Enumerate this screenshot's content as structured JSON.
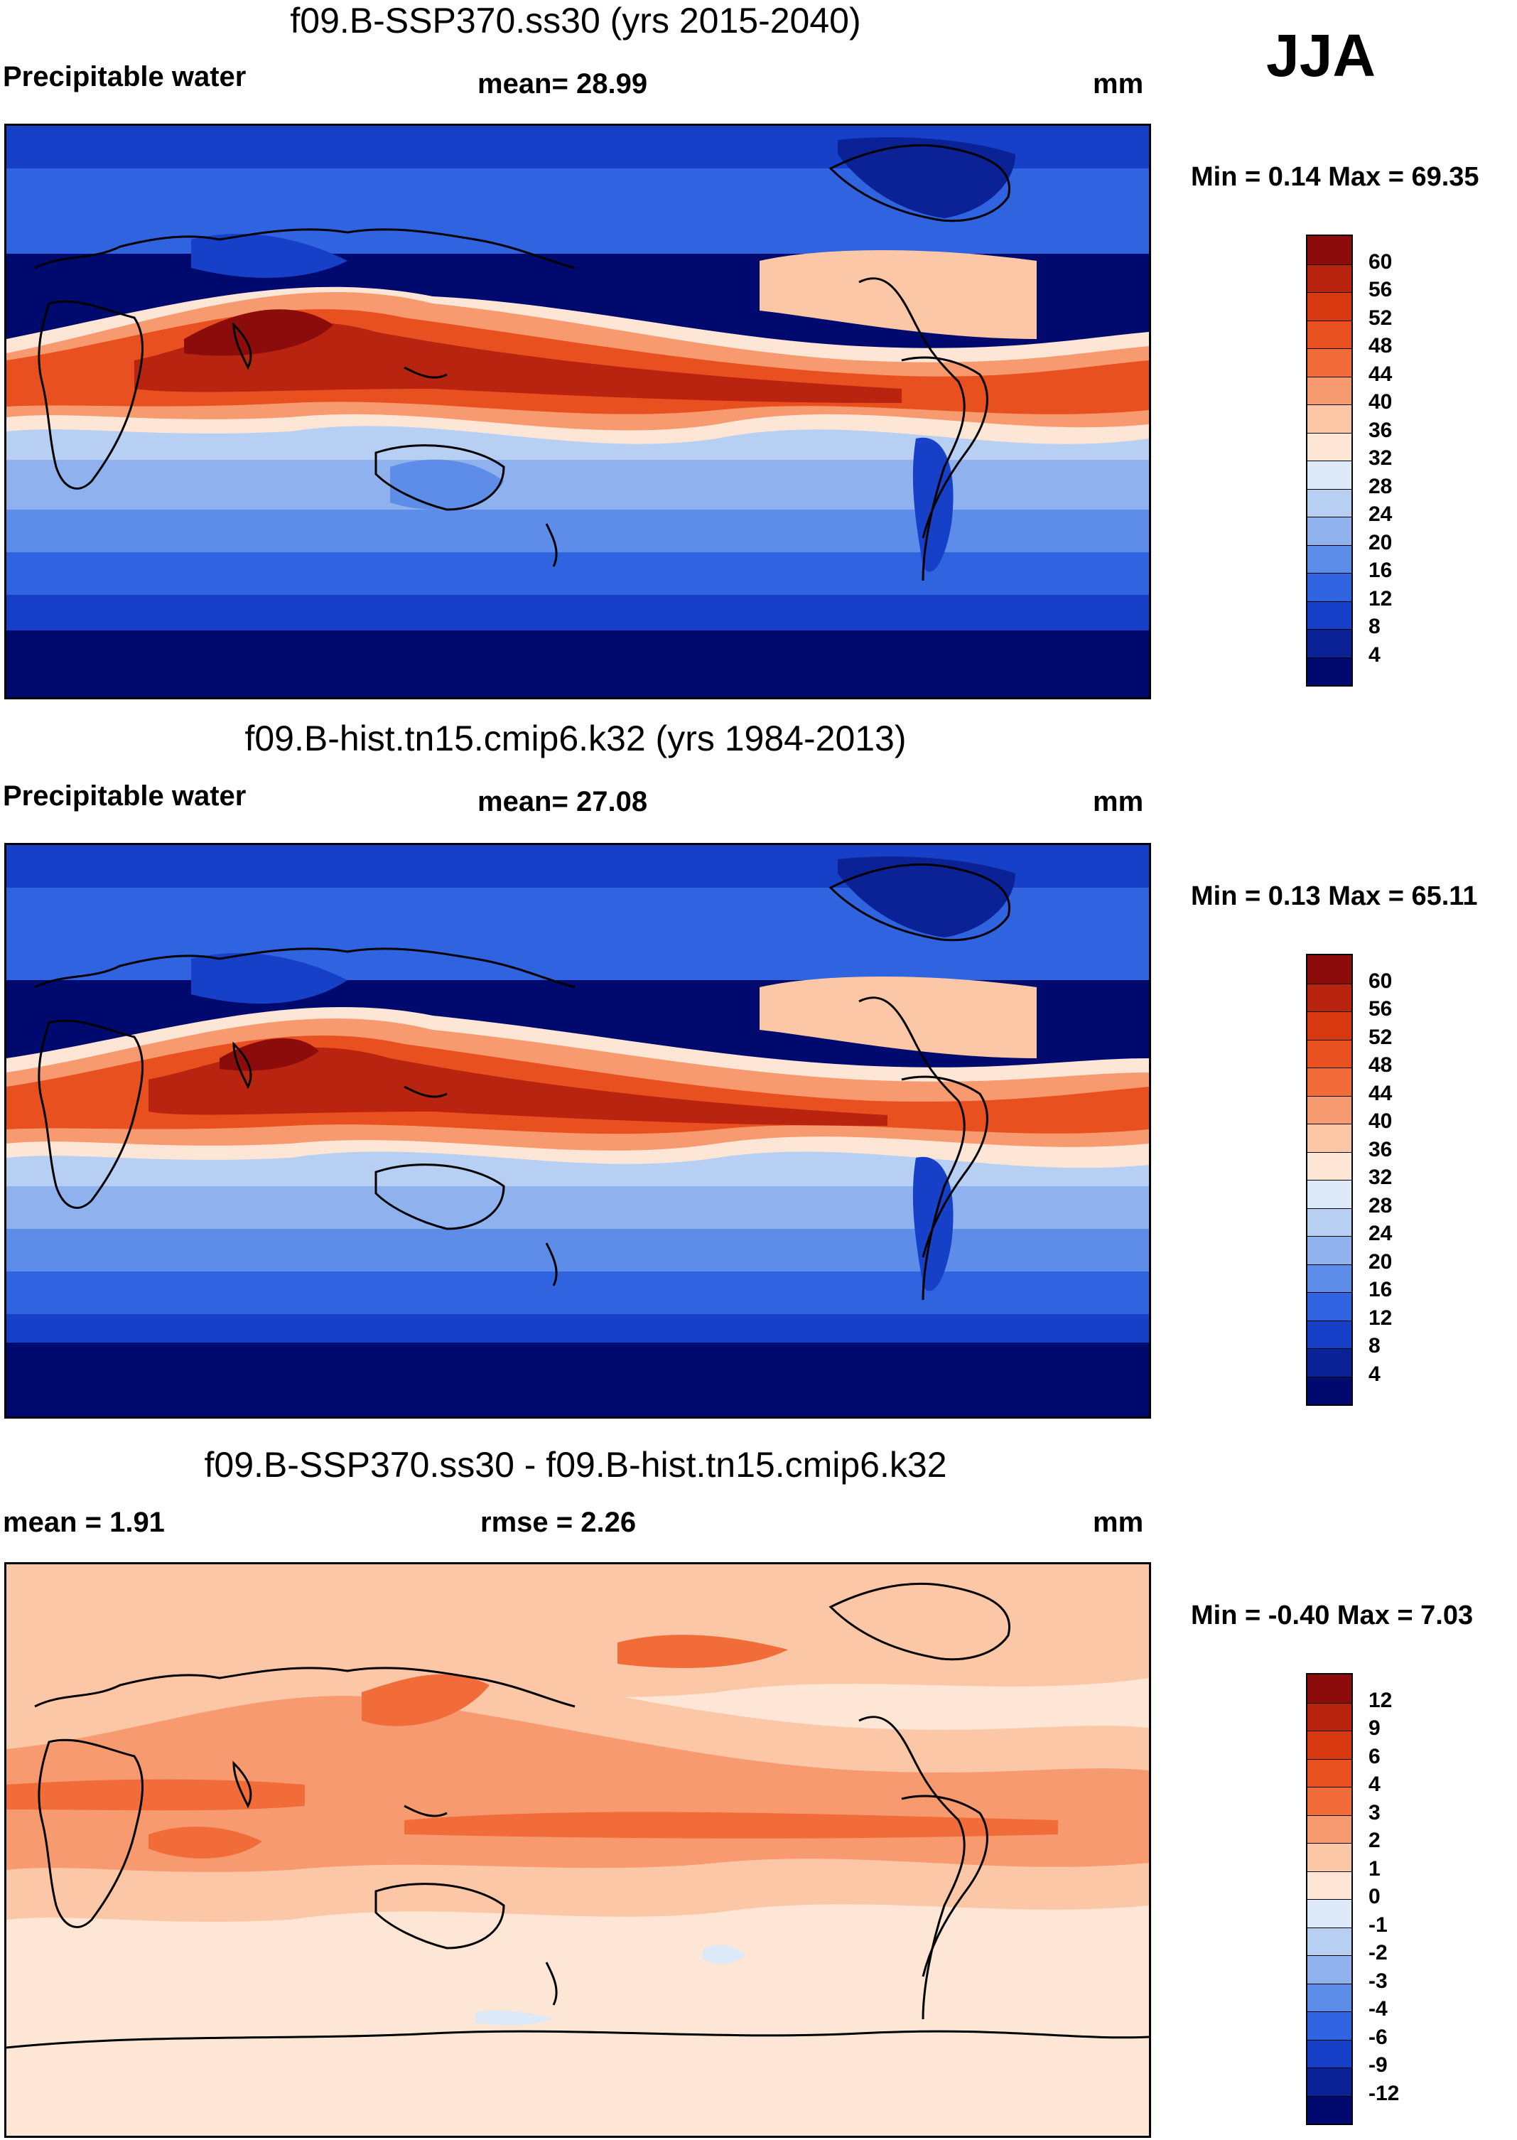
{
  "season": "JJA",
  "panels": [
    {
      "title": "f09.B-SSP370.ss30 (yrs 2015-2040)",
      "left_label": "Precipitable water",
      "center_label": "mean=  28.99",
      "units": "mm",
      "minmax": "Min =   0.14 Max =  69.35",
      "colorbar_labels": [
        "60",
        "56",
        "52",
        "48",
        "44",
        "40",
        "36",
        "32",
        "28",
        "24",
        "20",
        "16",
        "12",
        "8",
        "4"
      ],
      "colors": [
        "#8c0c0c",
        "#b82410",
        "#d8380f",
        "#e8501f",
        "#f26c3a",
        "#f89a70",
        "#fcc7a6",
        "#fde6d6",
        "#dbe9f8",
        "#b7cff3",
        "#8fb2ee",
        "#5d8de8",
        "#2f63e0",
        "#1740c8",
        "#0a2296",
        "#000a6e"
      ]
    },
    {
      "title": "f09.B-hist.tn15.cmip6.k32 (yrs 1984-2013)",
      "left_label": "Precipitable water",
      "center_label": "mean=  27.08",
      "units": "mm",
      "minmax": "Min =   0.13 Max =  65.11",
      "colorbar_labels": [
        "60",
        "56",
        "52",
        "48",
        "44",
        "40",
        "36",
        "32",
        "28",
        "24",
        "20",
        "16",
        "12",
        "8",
        "4"
      ],
      "colors": [
        "#8c0c0c",
        "#b82410",
        "#d8380f",
        "#e8501f",
        "#f26c3a",
        "#f89a70",
        "#fcc7a6",
        "#fde6d6",
        "#dbe9f8",
        "#b7cff3",
        "#8fb2ee",
        "#5d8de8",
        "#2f63e0",
        "#1740c8",
        "#0a2296",
        "#000a6e"
      ]
    },
    {
      "title": "f09.B-SSP370.ss30 - f09.B-hist.tn15.cmip6.k32",
      "left_label": "mean =   1.91",
      "center_label": "rmse =   2.26",
      "units": "mm",
      "minmax": "Min =  -0.40 Max =   7.03",
      "colorbar_labels": [
        "12",
        "9",
        "6",
        "4",
        "3",
        "2",
        "1",
        "0",
        "-1",
        "-2",
        "-3",
        "-4",
        "-6",
        "-9",
        "-12"
      ],
      "colors": [
        "#8c0c0c",
        "#b82410",
        "#d8380f",
        "#e8501f",
        "#f26c3a",
        "#f89a70",
        "#fcc7a6",
        "#fde6d6",
        "#dbe9f8",
        "#b7cff3",
        "#8fb2ee",
        "#5d8de8",
        "#2f63e0",
        "#1740c8",
        "#0a2296",
        "#000a6e"
      ]
    }
  ]
}
